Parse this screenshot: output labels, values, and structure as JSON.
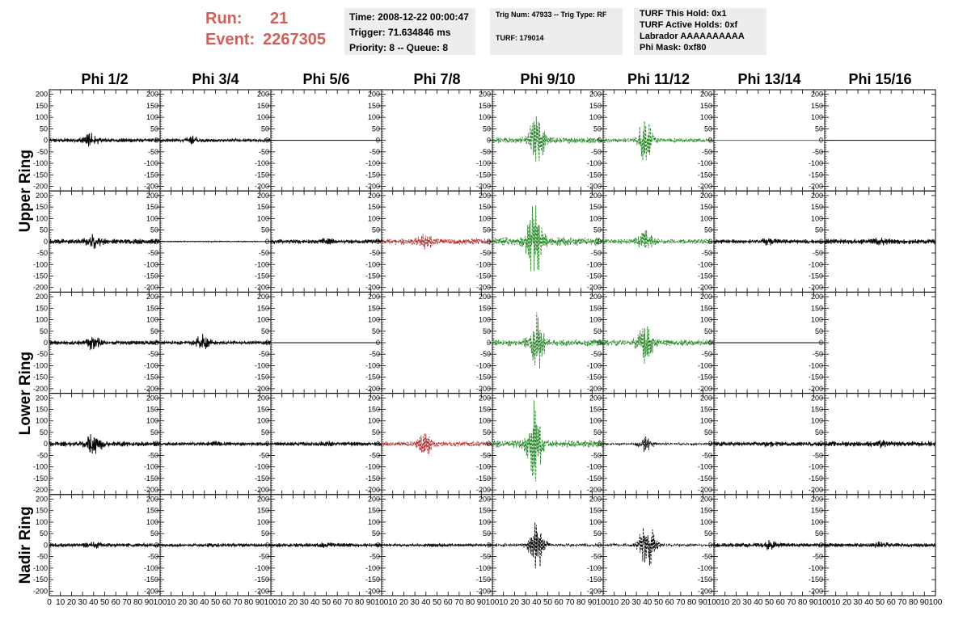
{
  "header": {
    "run_label": "Run:",
    "run_value": "21",
    "event_label": "Event:",
    "event_value": "2267305",
    "time_text": "Time: 2008-12-22 00:00:47",
    "trigger_text": "Trigger: 71.634846 ms",
    "priority_text": "Priority: 8 -- Queue: 8",
    "trig_num_text": "Trig Num: 47933 -- Trig Type: RF",
    "turf_text": "TURF: 179014",
    "turf_hold_text": "TURF This Hold: 0x1",
    "turf_active_text": "TURF Active Holds: 0xf",
    "labrador_text": "Labrador AAAAAAAAAA",
    "phi_mask_text": "Phi Mask: 0xf80"
  },
  "colors": {
    "accent_red": "#d0605a",
    "trace_black": "#000000",
    "trace_green": "#2a8a2a",
    "trace_red": "#b03030",
    "box_bg": "#ededed"
  },
  "chart_data": {
    "type": "line",
    "columns": [
      "Phi 1/2",
      "Phi 3/4",
      "Phi 5/6",
      "Phi 7/8",
      "Phi 9/10",
      "Phi 11/12",
      "Phi 13/14",
      "Phi 15/16"
    ],
    "ring_labels": [
      {
        "text": "Upper Ring",
        "rows": [
          0,
          1
        ]
      },
      {
        "text": "Lower Ring",
        "rows": [
          2,
          3
        ]
      },
      {
        "text": "Nadir Ring",
        "rows": [
          4
        ]
      }
    ],
    "xlim": [
      0,
      100
    ],
    "ylim": [
      -220,
      220
    ],
    "y_ticks": [
      200,
      150,
      100,
      50,
      0,
      -50,
      -100,
      -150,
      -200
    ],
    "x_ticks": [
      0,
      10,
      20,
      30,
      40,
      50,
      60,
      70,
      80,
      90,
      100
    ],
    "x_tick_labels": [
      "0",
      "10",
      "20",
      "30",
      "40",
      "50",
      "60",
      "70",
      "80",
      "90",
      "100"
    ],
    "trace_style_note": "Each panel: waveform centred at 0; amp = typical noise amplitude, peak = amplitude near pulse at x=peak_x; flat = flat line; color selects trace colour; dashed drawn dashed.",
    "panels": [
      [
        {
          "color": "black",
          "amp": 10,
          "peak": 40,
          "peak_x": 36,
          "flat": false,
          "dashed": false
        },
        {
          "color": "black",
          "amp": 8,
          "peak": 22,
          "peak_x": 30,
          "flat": false,
          "dashed": false
        },
        {
          "color": "black",
          "amp": 0,
          "peak": 0,
          "peak_x": 0,
          "flat": true,
          "dashed": false
        },
        {
          "color": "none",
          "amp": 0,
          "peak": 0,
          "peak_x": 0,
          "flat": false,
          "dashed": false
        },
        {
          "color": "green",
          "amp": 14,
          "peak": 150,
          "peak_x": 40,
          "flat": false,
          "dashed": true
        },
        {
          "color": "green",
          "amp": 10,
          "peak": 110,
          "peak_x": 38,
          "flat": false,
          "dashed": true
        },
        {
          "color": "green",
          "amp": 0,
          "peak": 0,
          "peak_x": 0,
          "flat": true,
          "dashed": false
        },
        {
          "color": "black",
          "amp": 0,
          "peak": 0,
          "peak_x": 0,
          "flat": true,
          "dashed": false
        }
      ],
      [
        {
          "color": "black",
          "amp": 12,
          "peak": 35,
          "peak_x": 40,
          "flat": false,
          "dashed": false
        },
        {
          "color": "black",
          "amp": 2,
          "peak": 3,
          "peak_x": 50,
          "flat": false,
          "dashed": false
        },
        {
          "color": "black",
          "amp": 10,
          "peak": 18,
          "peak_x": 50,
          "flat": false,
          "dashed": false
        },
        {
          "color": "red",
          "amp": 15,
          "peak": 40,
          "peak_x": 40,
          "flat": false,
          "dashed": true
        },
        {
          "color": "green",
          "amp": 20,
          "peak": 180,
          "peak_x": 38,
          "flat": false,
          "dashed": true
        },
        {
          "color": "green",
          "amp": 12,
          "peak": 60,
          "peak_x": 38,
          "flat": false,
          "dashed": true
        },
        {
          "color": "black",
          "amp": 10,
          "peak": 20,
          "peak_x": 50,
          "flat": false,
          "dashed": false
        },
        {
          "color": "black",
          "amp": 12,
          "peak": 20,
          "peak_x": 50,
          "flat": false,
          "dashed": false
        }
      ],
      [
        {
          "color": "black",
          "amp": 10,
          "peak": 40,
          "peak_x": 40,
          "flat": false,
          "dashed": false
        },
        {
          "color": "black",
          "amp": 9,
          "peak": 40,
          "peak_x": 38,
          "flat": false,
          "dashed": false
        },
        {
          "color": "black",
          "amp": 0,
          "peak": 0,
          "peak_x": 0,
          "flat": true,
          "dashed": false
        },
        {
          "color": "none",
          "amp": 0,
          "peak": 0,
          "peak_x": 0,
          "flat": false,
          "dashed": false
        },
        {
          "color": "green",
          "amp": 16,
          "peak": 150,
          "peak_x": 40,
          "flat": false,
          "dashed": true
        },
        {
          "color": "green",
          "amp": 14,
          "peak": 110,
          "peak_x": 38,
          "flat": false,
          "dashed": true
        },
        {
          "color": "black",
          "amp": 0,
          "peak": 0,
          "peak_x": 0,
          "flat": true,
          "dashed": false
        },
        {
          "color": "none",
          "amp": 0,
          "peak": 0,
          "peak_x": 0,
          "flat": false,
          "dashed": false
        }
      ],
      [
        {
          "color": "black",
          "amp": 12,
          "peak": 80,
          "peak_x": 40,
          "flat": false,
          "dashed": false
        },
        {
          "color": "black",
          "amp": 8,
          "peak": 15,
          "peak_x": 50,
          "flat": false,
          "dashed": false
        },
        {
          "color": "black",
          "amp": 9,
          "peak": 15,
          "peak_x": 50,
          "flat": false,
          "dashed": false
        },
        {
          "color": "red",
          "amp": 12,
          "peak": 60,
          "peak_x": 40,
          "flat": false,
          "dashed": true
        },
        {
          "color": "green",
          "amp": 18,
          "peak": 200,
          "peak_x": 38,
          "flat": false,
          "dashed": true
        },
        {
          "color": "black",
          "amp": 5,
          "peak": 40,
          "peak_x": 38,
          "flat": false,
          "dashed": true
        },
        {
          "color": "black",
          "amp": 10,
          "peak": 18,
          "peak_x": 50,
          "flat": false,
          "dashed": false
        },
        {
          "color": "black",
          "amp": 12,
          "peak": 22,
          "peak_x": 50,
          "flat": false,
          "dashed": false
        }
      ],
      [
        {
          "color": "black",
          "amp": 9,
          "peak": 18,
          "peak_x": 40,
          "flat": false,
          "dashed": false
        },
        {
          "color": "black",
          "amp": 7,
          "peak": 12,
          "peak_x": 50,
          "flat": false,
          "dashed": false
        },
        {
          "color": "black",
          "amp": 9,
          "peak": 18,
          "peak_x": 50,
          "flat": false,
          "dashed": false
        },
        {
          "color": "black",
          "amp": 6,
          "peak": 10,
          "peak_x": 50,
          "flat": false,
          "dashed": false
        },
        {
          "color": "black",
          "amp": 6,
          "peak": 130,
          "peak_x": 40,
          "flat": false,
          "dashed": true
        },
        {
          "color": "black",
          "amp": 6,
          "peak": 150,
          "peak_x": 40,
          "flat": false,
          "dashed": true
        },
        {
          "color": "black",
          "amp": 10,
          "peak": 25,
          "peak_x": 50,
          "flat": false,
          "dashed": false
        },
        {
          "color": "black",
          "amp": 9,
          "peak": 18,
          "peak_x": 50,
          "flat": false,
          "dashed": false
        }
      ]
    ]
  }
}
